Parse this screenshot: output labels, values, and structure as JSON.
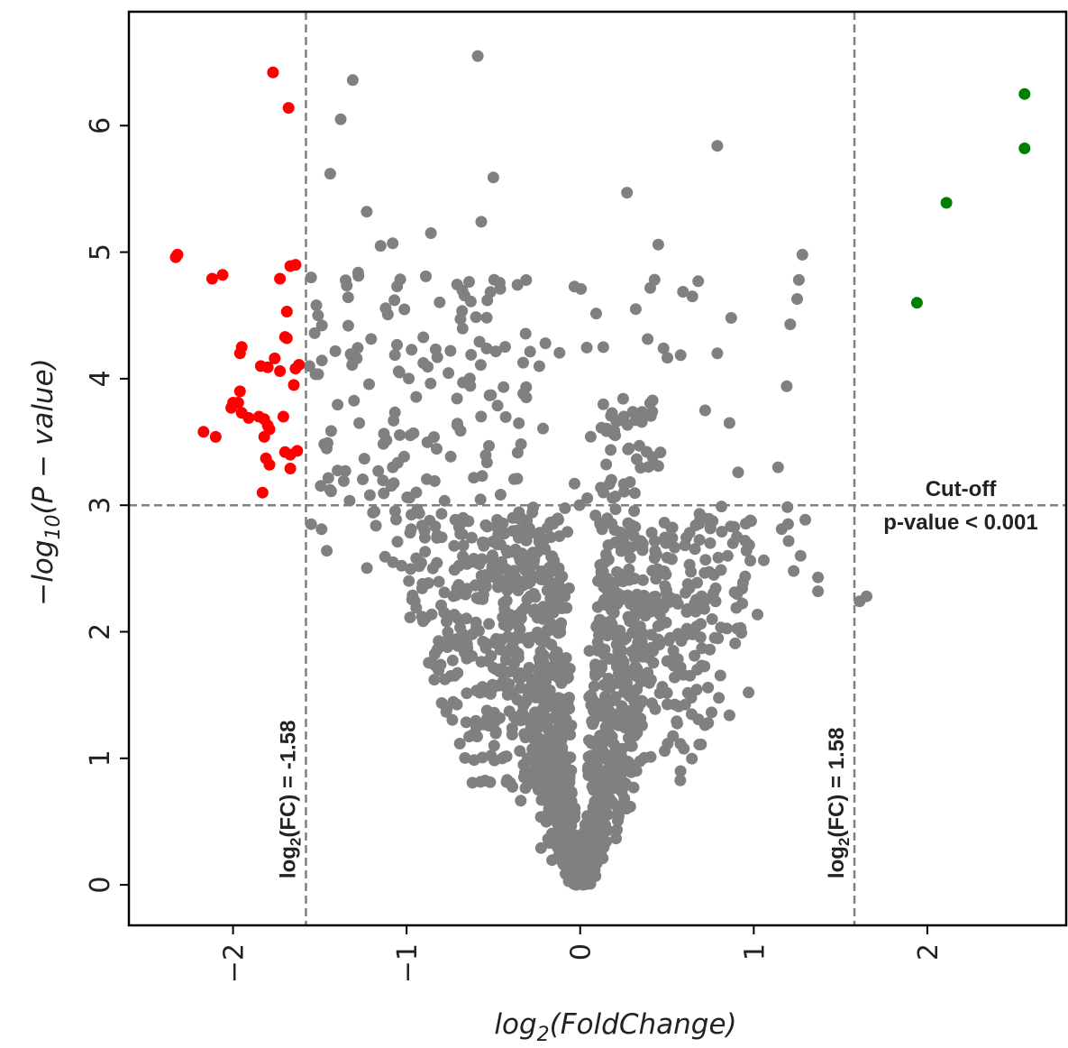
{
  "chart_data": {
    "type": "scatter",
    "title": "",
    "xlabel_parts": {
      "pre": "log",
      "sub": "2",
      "post": "(FoldChange)"
    },
    "ylabel_parts": {
      "pre": "−log",
      "sub": "10",
      "post": "(P − value)"
    },
    "xlim": [
      -2.6,
      2.8
    ],
    "ylim": [
      -0.32,
      6.9
    ],
    "x_ticks": [
      -2,
      -1,
      0,
      1,
      2
    ],
    "x_tick_labels": [
      "−2",
      "−1",
      "0",
      "1",
      "2"
    ],
    "y_ticks": [
      0,
      1,
      2,
      3,
      4,
      5,
      6
    ],
    "y_tick_labels": [
      "0",
      "1",
      "2",
      "3",
      "4",
      "5",
      "6"
    ],
    "grid": false,
    "thresholds": {
      "fc_low": -1.58,
      "fc_high": 1.58,
      "p_line": 3
    },
    "annotations": {
      "fc_low_parts": {
        "pre": "log",
        "sub": "2",
        "post": "(FC) = -1.58"
      },
      "fc_high_parts": {
        "pre": "log",
        "sub": "2",
        "post": "(FC) = 1.58"
      },
      "cutoff_line1": "Cut-off",
      "cutoff_line2": "p-value < 0.001"
    },
    "colors": {
      "down": "#ff0000",
      "up": "#008000",
      "ns": "#808080",
      "threshold_line": "#808080"
    },
    "series": [
      {
        "key": "down",
        "points": [
          [
            -1.77,
            6.42
          ],
          [
            -1.68,
            6.14
          ],
          [
            -2.32,
            4.98
          ],
          [
            -2.33,
            4.96
          ],
          [
            -2.06,
            4.82
          ],
          [
            -2.12,
            4.79
          ],
          [
            -1.67,
            4.89
          ],
          [
            -1.64,
            4.9
          ],
          [
            -1.73,
            4.79
          ],
          [
            -1.69,
            4.53
          ],
          [
            -1.7,
            4.33
          ],
          [
            -1.69,
            4.32
          ],
          [
            -1.95,
            4.25
          ],
          [
            -1.96,
            4.2
          ],
          [
            -1.76,
            4.16
          ],
          [
            -1.84,
            4.1
          ],
          [
            -1.62,
            4.11
          ],
          [
            -1.64,
            4.08
          ],
          [
            -1.8,
            4.09
          ],
          [
            -1.73,
            4.06
          ],
          [
            -1.65,
            3.95
          ],
          [
            -1.96,
            3.9
          ],
          [
            -2.0,
            3.81
          ],
          [
            -1.97,
            3.81
          ],
          [
            -2.01,
            3.77
          ],
          [
            -1.95,
            3.73
          ],
          [
            -1.91,
            3.69
          ],
          [
            -1.82,
            3.68
          ],
          [
            -1.85,
            3.7
          ],
          [
            -1.71,
            3.7
          ],
          [
            -1.8,
            3.63
          ],
          [
            -1.79,
            3.6
          ],
          [
            -2.17,
            3.58
          ],
          [
            -2.1,
            3.54
          ],
          [
            -1.82,
            3.54
          ],
          [
            -1.7,
            3.42
          ],
          [
            -1.67,
            3.4
          ],
          [
            -1.63,
            3.43
          ],
          [
            -1.81,
            3.37
          ],
          [
            -1.79,
            3.32
          ],
          [
            -1.67,
            3.29
          ],
          [
            -1.83,
            3.1
          ]
        ]
      },
      {
        "key": "up",
        "points": [
          [
            2.56,
            6.25
          ],
          [
            2.56,
            5.82
          ],
          [
            2.11,
            5.39
          ],
          [
            1.94,
            4.6
          ]
        ]
      },
      {
        "key": "ns",
        "generator": "random-volcano",
        "extra_points": [
          [
            -0.59,
            6.55
          ],
          [
            -1.31,
            6.36
          ],
          [
            -1.38,
            6.05
          ],
          [
            0.79,
            5.84
          ],
          [
            -1.44,
            5.62
          ],
          [
            -0.5,
            5.59
          ],
          [
            0.27,
            5.47
          ],
          [
            -1.23,
            5.32
          ],
          [
            -0.57,
            5.24
          ],
          [
            -0.86,
            5.15
          ],
          [
            -1.08,
            5.07
          ],
          [
            -1.15,
            5.05
          ],
          [
            0.45,
            5.06
          ],
          [
            1.28,
            4.98
          ],
          [
            1.26,
            4.78
          ],
          [
            0.68,
            4.77
          ],
          [
            1.25,
            4.63
          ],
          [
            0.87,
            4.48
          ],
          [
            1.21,
            4.43
          ],
          [
            0.48,
            4.24
          ],
          [
            0.79,
            4.2
          ],
          [
            1.19,
            3.94
          ],
          [
            0.72,
            3.75
          ],
          [
            0.86,
            3.65
          ],
          [
            1.14,
            3.3
          ],
          [
            0.91,
            3.26
          ],
          [
            0.45,
            3.31
          ],
          [
            0.32,
            4.55
          ],
          [
            -0.63,
            4.61
          ],
          [
            -0.46,
            4.71
          ],
          [
            -0.2,
            4.28
          ],
          [
            1.27,
            2.6
          ],
          [
            1.37,
            2.43
          ],
          [
            1.37,
            2.32
          ],
          [
            1.23,
            2.48
          ],
          [
            1.65,
            2.28
          ],
          [
            1.61,
            2.24
          ],
          [
            0.98,
            2.88
          ],
          [
            0.95,
            2.72
          ],
          [
            0.88,
            2.7
          ],
          [
            0.85,
            2.6
          ],
          [
            0.77,
            2.45
          ],
          [
            0.63,
            2.53
          ],
          [
            0.97,
            1.52
          ],
          [
            0.86,
            1.34
          ],
          [
            0.78,
            2.24
          ],
          [
            0.76,
            2.1
          ],
          [
            -1.87,
            2.86
          ],
          [
            -1.8,
            2.97
          ],
          [
            -1.59,
            2.73
          ],
          [
            -1.49,
            2.81
          ],
          [
            -1.46,
            2.64
          ],
          [
            -1.55,
            2.85
          ],
          [
            -1.63,
            4.15
          ],
          [
            -1.58,
            4.42
          ],
          [
            -1.56,
            4.1
          ],
          [
            -1.52,
            4.58
          ],
          [
            -1.51,
            4.5
          ],
          [
            -1.55,
            4.8
          ],
          [
            -1.53,
            4.36
          ]
        ]
      }
    ]
  }
}
